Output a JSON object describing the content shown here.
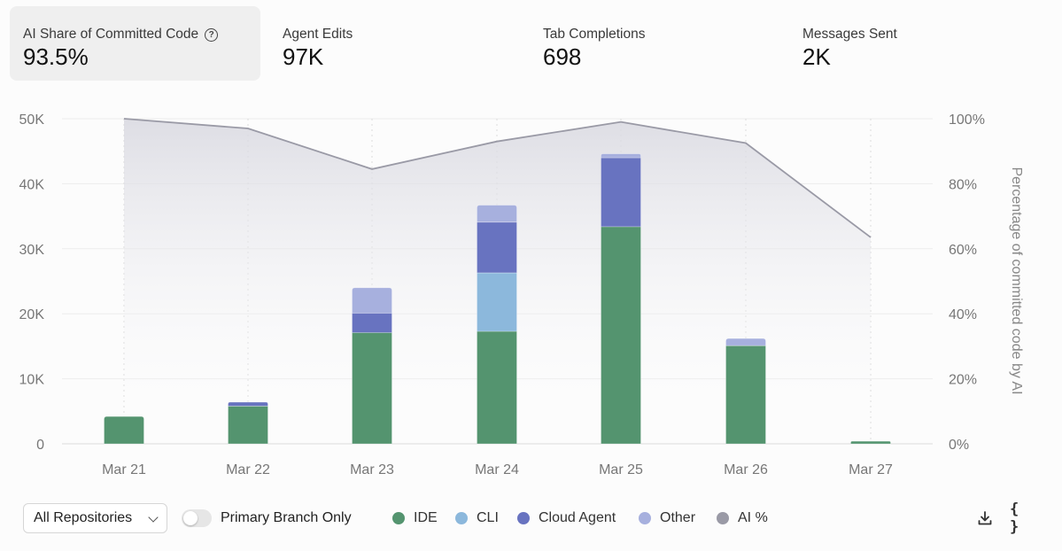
{
  "cards": [
    {
      "label": "AI Share of Committed Code",
      "value": "93.5%",
      "help_icon": "help-circle-icon"
    },
    {
      "label": "Agent Edits",
      "value": "97K"
    },
    {
      "label": "Tab Completions",
      "value": "698"
    },
    {
      "label": "Messages Sent",
      "value": "2K"
    }
  ],
  "controls": {
    "repo_select": "All Repositories",
    "toggle_label": "Primary Branch Only",
    "toggle_on": false,
    "download_icon": "download-icon",
    "json_icon": "braces-icon",
    "json_glyph": "{ }"
  },
  "colors": {
    "ide": "#54946f",
    "cli": "#8cb8dc",
    "cloud": "#6873c0",
    "other": "#a7b0de",
    "ai": "#9a9aa6"
  },
  "chart_data": {
    "type": "bar",
    "stacked": true,
    "categories": [
      "Mar 21",
      "Mar 22",
      "Mar 23",
      "Mar 24",
      "Mar 25",
      "Mar 26",
      "Mar 27"
    ],
    "series": [
      {
        "name": "IDE",
        "key": "ide",
        "values": [
          4200,
          5800,
          17100,
          17300,
          33400,
          15100,
          400
        ]
      },
      {
        "name": "CLI",
        "key": "cli",
        "values": [
          0,
          0,
          0,
          9000,
          0,
          0,
          0
        ]
      },
      {
        "name": "Cloud Agent",
        "key": "cloud",
        "values": [
          0,
          600,
          3000,
          7800,
          10600,
          0,
          0
        ]
      },
      {
        "name": "Other",
        "key": "other",
        "values": [
          0,
          0,
          3900,
          2600,
          600,
          1100,
          0
        ]
      }
    ],
    "line_series": {
      "name": "AI %",
      "key": "ai",
      "values": [
        100,
        97,
        84.5,
        93,
        99,
        92.5,
        63.5
      ]
    },
    "yleft": {
      "ticks": [
        "0",
        "10K",
        "20K",
        "30K",
        "40K",
        "50K"
      ],
      "ylim": [
        0,
        50000
      ]
    },
    "yright": {
      "ticks": [
        "0%",
        "20%",
        "40%",
        "60%",
        "80%",
        "100%"
      ],
      "ylim": [
        0,
        100
      ],
      "label": "Percentage of committed code by AI"
    },
    "legend": [
      "IDE",
      "CLI",
      "Cloud Agent",
      "Other",
      "AI %"
    ],
    "grid": true
  }
}
